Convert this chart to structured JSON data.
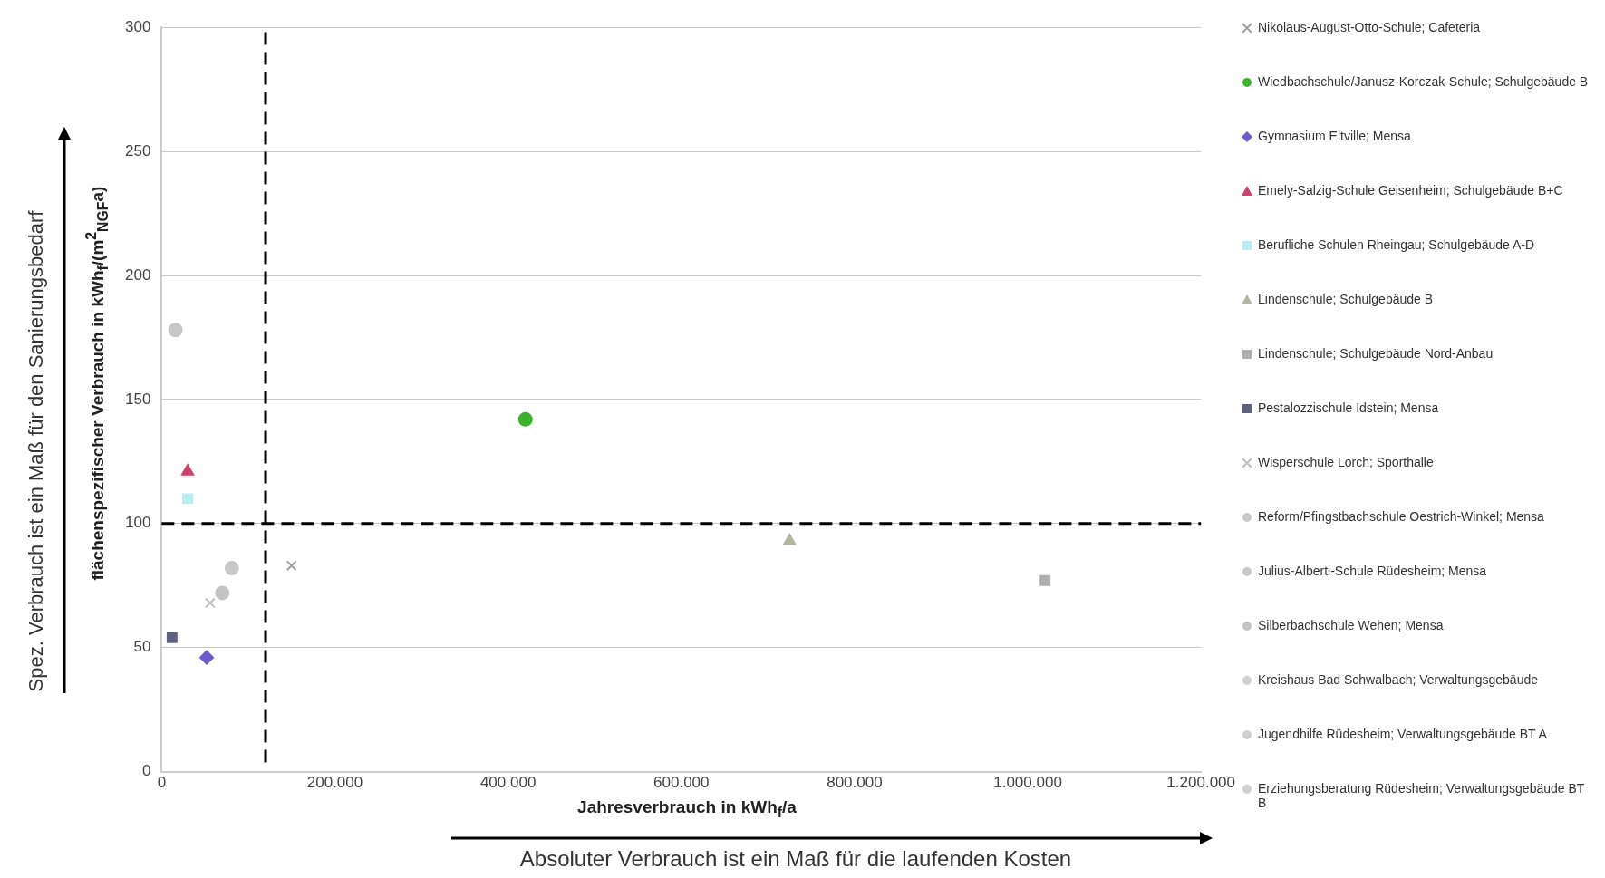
{
  "chart_data": {
    "type": "scatter",
    "xlabel": "Jahresverbrauch in kWh$_{f}$/a",
    "ylabel": "flächenspezifischer Verbrauch in kWh$_{f}$/(m$^{2}$$_{NGF}$a)",
    "annotations": [
      "Spez. Verbrauch ist ein Maß für den Sanierungsbedarf",
      "Absoluter Verbrauch ist ein Maß für die laufenden Kosten"
    ],
    "xlim": [
      0,
      1200000
    ],
    "xticks": [
      0,
      {
        "value": 200000,
        "label": "200.000"
      },
      {
        "value": 400000,
        "label": "400.000"
      },
      {
        "value": 600000,
        "label": "600.000"
      },
      {
        "value": 800000,
        "label": "800.000"
      },
      {
        "value": 1000000,
        "label": "1.000.000"
      },
      {
        "value": 1200000,
        "label": "1.200.000"
      }
    ],
    "ylim": [
      0,
      300
    ],
    "yticks": [
      0,
      50,
      100,
      150,
      200,
      250,
      300
    ],
    "grid": "y",
    "legend": "right",
    "ref_lines": [
      {
        "axis": "x",
        "value": 120000,
        "color": "#000000",
        "line_style": "dashed"
      },
      {
        "axis": "y",
        "value": 100,
        "color": "#000000",
        "line_style": "dashed"
      }
    ],
    "series": [
      {
        "name": "Nikolaus-August-Otto-Schule; Cafeteria",
        "color": "#a0a0a0",
        "marker": "cross",
        "x": [
          150000
        ],
        "values": [
          83
        ]
      },
      {
        "name": "Wiedbachschule/Janusz-Korczak-Schule; Schulgebäude B",
        "color": "#3cb22c",
        "marker": "circle",
        "x": [
          420000
        ],
        "values": [
          142
        ]
      },
      {
        "name": "Gymnasium Eltville; Mensa",
        "color": "#6a5acd",
        "marker": "diamond",
        "x": [
          52000
        ],
        "values": [
          46
        ]
      },
      {
        "name": "Emely-Salzig-Schule Geisenheim; Schulgebäude B+C",
        "color": "#d0406a",
        "marker": "triangle",
        "x": [
          30000
        ],
        "values": [
          121
        ]
      },
      {
        "name": "Berufliche Schulen Rheingau; Schulgebäude A-D",
        "color": "#b8eef0",
        "marker": "square",
        "x": [
          30000
        ],
        "values": [
          110
        ]
      },
      {
        "name": "Lindenschule; Schulgebäude B",
        "color": "#b4b4a0",
        "marker": "triangle",
        "x": [
          725000
        ],
        "values": [
          93
        ]
      },
      {
        "name": "Lindenschule; Schulgebäude Nord-Anbau",
        "color": "#b0b0b0",
        "marker": "square",
        "x": [
          1020000
        ],
        "values": [
          77
        ]
      },
      {
        "name": "Pestalozzischule Idstein; Mensa",
        "color": "#606080",
        "marker": "square",
        "x": [
          12000
        ],
        "values": [
          54
        ]
      },
      {
        "name": "Wisperschule Lorch; Sporthalle",
        "color": "#c0c0c0",
        "marker": "cross",
        "x": [
          56000
        ],
        "values": [
          68
        ]
      },
      {
        "name": "Reform/Pfingstbachschule Oestrich-Winkel; Mensa",
        "color": "#c8c8c8",
        "marker": "circle",
        "x": [
          81000
        ],
        "values": [
          82
        ]
      },
      {
        "name": "Julius-Alberti-Schule Rüdesheim; Mensa",
        "color": "#c8c8c8",
        "marker": "circle",
        "x": [
          16000
        ],
        "values": [
          178
        ]
      },
      {
        "name": "Silberbachschule Wehen; Mensa",
        "color": "#c4c4c4",
        "marker": "circle",
        "x": [
          70000
        ],
        "values": [
          72
        ]
      },
      {
        "name": "Kreishaus Bad Schwalbach; Verwaltungsgebäude",
        "color": "#d0d0d0",
        "marker": "circle"
      },
      {
        "name": "Jugendhilfe Rüdesheim; Verwaltungsgebäude BT A",
        "color": "#d0d0d0",
        "marker": "circle"
      },
      {
        "name": "Erziehungsberatung Rüdesheim; Verwaltungsgebäude BT B",
        "color": "#d0d0d0",
        "marker": "circle"
      }
    ]
  }
}
